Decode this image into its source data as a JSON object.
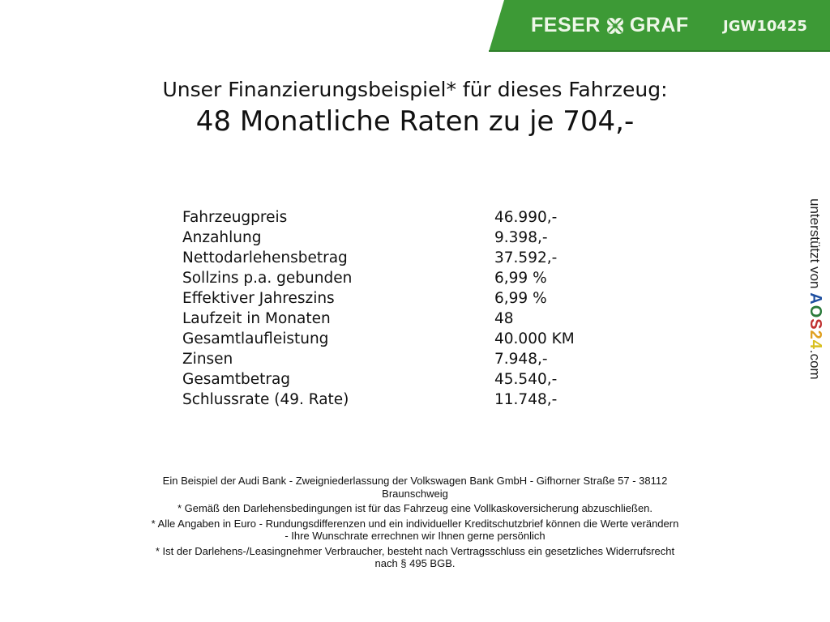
{
  "header": {
    "brand_left": "FESER",
    "brand_right": "GRAF",
    "code": "JGW10425",
    "logo_icon": "clover-icon",
    "brand_color": "#3d9a36"
  },
  "title": {
    "line1": "Unser Finanzierungsbeispiel* für dieses Fahrzeug:",
    "line2": "48 Monatliche Raten zu je 704,-"
  },
  "table": {
    "rows": [
      {
        "label": "Fahrzeugpreis",
        "value": "46.990,-"
      },
      {
        "label": "Anzahlung",
        "value": "9.398,-"
      },
      {
        "label": "Nettodarlehensbetrag",
        "value": "37.592,-"
      },
      {
        "label": "Sollzins p.a. gebunden",
        "value": "6,99 %"
      },
      {
        "label": "Effektiver Jahreszins",
        "value": "6,99 %"
      },
      {
        "label": "Laufzeit in Monaten",
        "value": "48"
      },
      {
        "label": "Gesamtlaufleistung",
        "value": "40.000 KM"
      },
      {
        "label": "Zinsen",
        "value": "7.948,-"
      },
      {
        "label": "Gesamtbetrag",
        "value": "45.540,-"
      },
      {
        "label": "Schlussrate (49. Rate)",
        "value": "11.748,-"
      }
    ]
  },
  "side": {
    "prefix": "unterstützt von",
    "logo": "AOS24",
    "suffix": ".com"
  },
  "footer": {
    "p1": [
      "Ein Beispiel der Audi Bank - Zweigniederlassung der Volkswagen Bank GmbH - Gifhorner Straße 57 - 38112",
      "Braunschweig"
    ],
    "p2": [
      "* Gemäß den Darlehensbedingungen ist für das Fahrzeug eine Vollkaskoversicherung abzuschließen."
    ],
    "p3": [
      "* Alle Angaben in Euro - Rundungsdifferenzen und ein individueller Kreditschutzbrief können die Werte verändern",
      "- Ihre Wunschrate errechnen wir Ihnen gerne persönlich"
    ],
    "p4": [
      "* Ist der Darlehens-/Leasingnehmer Verbraucher, besteht nach Vertragsschluss ein gesetzliches Widerrufsrecht",
      "nach § 495 BGB."
    ]
  }
}
